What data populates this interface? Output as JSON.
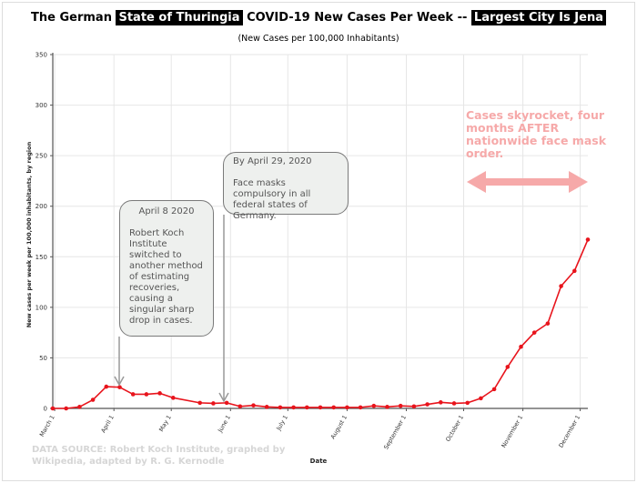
{
  "title": {
    "prefix": "The German ",
    "highlight1": "State of Thuringia",
    "middle": " COVID-19 New Cases Per Week -- ",
    "highlight2": "Largest City Is Jena"
  },
  "subtitle": "(New Cases per 100,000 Inhabitants)",
  "callouts": {
    "april8": {
      "heading": "April 8 2020",
      "body": "Robert Koch Institute switched to another method of estimating recoveries, causing a singular sharp drop in cases."
    },
    "april29": {
      "heading": "By April 29, 2020",
      "body": "Face masks compulsory in all federal states of Germany."
    }
  },
  "annotation": {
    "text": "Cases skyrocket, four months AFTER nationwide face mask order.",
    "color": "#f6a9a9"
  },
  "source_note": "DATA SOURCE: Robert Koch Institute, graphed by Wikipedia, adapted by R. G. Kernodle",
  "colors": {
    "series": "#e8141c",
    "axis": "#555555",
    "grid": "#e6e6e6",
    "arrow": "#999999"
  },
  "chart_data": {
    "type": "line",
    "title": "The German State of Thuringia COVID-19 New Cases Per Week -- Largest City Is Jena",
    "subtitle": "(New Cases per 100,000 Inhabitants)",
    "xlabel": "Date",
    "ylabel": "New cases per week per 100,000 inhabitants, by region",
    "xtick_labels": [
      "March 1",
      "April 1",
      "May 1",
      "June 1",
      "July 1",
      "August 1",
      "September 1",
      "October 1",
      "November 1",
      "December 1"
    ],
    "ylim": [
      0,
      350
    ],
    "yticks": [
      0,
      50,
      100,
      150,
      200,
      250,
      300,
      350
    ],
    "grid": true,
    "series": [
      {
        "x": [
          "2020-02-29",
          "2020-03-07",
          "2020-03-14",
          "2020-03-21",
          "2020-03-28",
          "2020-04-04",
          "2020-04-11",
          "2020-04-18",
          "2020-04-25",
          "2020-05-02",
          "2020-05-16",
          "2020-05-23",
          "2020-05-30",
          "2020-06-06",
          "2020-06-13",
          "2020-06-20",
          "2020-06-27",
          "2020-07-04",
          "2020-07-11",
          "2020-07-18",
          "2020-07-25",
          "2020-08-01",
          "2020-08-08",
          "2020-08-15",
          "2020-08-22",
          "2020-08-29",
          "2020-09-05",
          "2020-09-12",
          "2020-09-19",
          "2020-09-26",
          "2020-10-03",
          "2020-10-10",
          "2020-10-17",
          "2020-10-24",
          "2020-10-31",
          "2020-11-07",
          "2020-11-14",
          "2020-11-21",
          "2020-11-28",
          "2020-12-05"
        ],
        "values": [
          0,
          0,
          1.5,
          8.5,
          21.5,
          21,
          14,
          14,
          15,
          10.5,
          5.5,
          5,
          5.5,
          2,
          3,
          1.5,
          1,
          1,
          1,
          1,
          1,
          1,
          1,
          2.5,
          1.5,
          2.5,
          2,
          4,
          6,
          5,
          5.5,
          10,
          19,
          41,
          61,
          75,
          84,
          121,
          136,
          167
        ]
      }
    ]
  }
}
